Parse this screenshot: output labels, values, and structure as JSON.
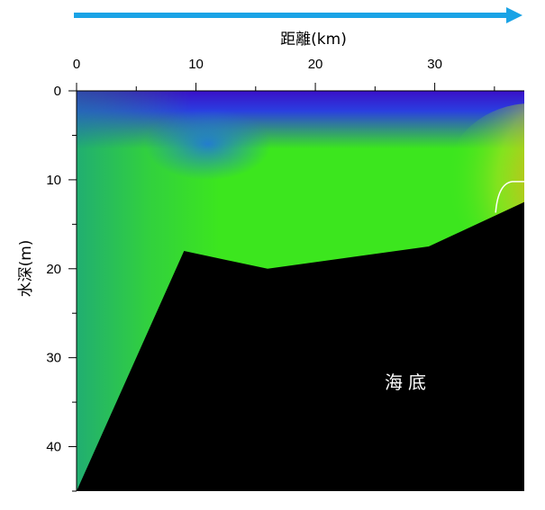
{
  "chart_data": {
    "type": "heatmap",
    "title": "",
    "xlabel": "距離(km)",
    "ylabel": "水深(m)",
    "x_ticks": [
      0,
      10,
      20,
      30
    ],
    "y_ticks": [
      0,
      10,
      20,
      30,
      40
    ],
    "xlim": [
      0,
      37.5
    ],
    "ylim": [
      45,
      0
    ],
    "x_axis_position": "top",
    "direction_arrow": "left-to-right",
    "seabed": {
      "label": "海底",
      "color": "#000000",
      "profile": [
        {
          "x": 0,
          "depth": 45
        },
        {
          "x": 9,
          "depth": 18
        },
        {
          "x": 16,
          "depth": 20
        },
        {
          "x": 29.5,
          "depth": 17.5
        },
        {
          "x": 37.5,
          "depth": 12.5
        }
      ]
    },
    "colors": {
      "arrow": "#1aa3e6",
      "deep_blue": "#3a10c8",
      "blue": "#1f6fe8",
      "green": "#3ce61e",
      "teal": "#1ea87a",
      "orange": "#f59a18",
      "red": "#f0502a",
      "contour": "#ffffff"
    }
  }
}
